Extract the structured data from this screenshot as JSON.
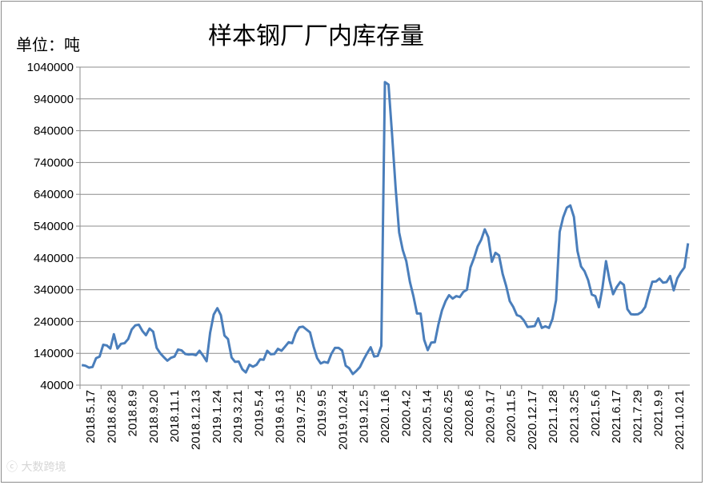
{
  "chart_data": {
    "type": "line",
    "title": "样本钢厂厂内库存量",
    "unit_label": "单位：吨",
    "ylim": [
      40000,
      1040000
    ],
    "y_ticks": [
      "1040000",
      "940000",
      "840000",
      "740000",
      "640000",
      "540000",
      "440000",
      "340000",
      "240000",
      "140000",
      "40000"
    ],
    "x_tick_labels": [
      "2018.5.17",
      "2018.6.28",
      "2018.8.9",
      "2018.9.20",
      "2018.11.1",
      "2018.12.13",
      "2019.1.24",
      "2019.3.21",
      "2019.5.4",
      "2019.6.13",
      "2019.7.25",
      "2019.9.5",
      "2019.10.24",
      "2019.12.5",
      "2020.1.16",
      "2020.4.2",
      "2020.5.14",
      "2020.6.25",
      "2020.8.6",
      "2020.9.17",
      "2020.11.5",
      "2020.12.17",
      "2021.1.28",
      "2021.3.25",
      "2021.5.6",
      "2021.6.17",
      "2021.7.29",
      "2021.9.9",
      "2021.10.21"
    ],
    "grid": true,
    "legend": "none",
    "series": [
      {
        "color": "#4a7ebb",
        "values": [
          103000,
          101000,
          95000,
          97000,
          125000,
          130000,
          167000,
          165000,
          155000,
          200000,
          155000,
          170000,
          172000,
          185000,
          215000,
          228000,
          230000,
          210000,
          197000,
          218000,
          208000,
          157000,
          140000,
          128000,
          117000,
          126000,
          130000,
          152000,
          149000,
          138000,
          136000,
          137000,
          134000,
          148000,
          133000,
          115000,
          205000,
          262000,
          282000,
          260000,
          196000,
          185000,
          127000,
          113000,
          114000,
          90000,
          80000,
          104000,
          98000,
          104000,
          121000,
          120000,
          148000,
          137000,
          138000,
          154000,
          148000,
          161000,
          175000,
          172000,
          204000,
          222000,
          224000,
          215000,
          206000,
          161000,
          125000,
          108000,
          113000,
          110000,
          139000,
          157000,
          157000,
          149000,
          101000,
          93000,
          75000,
          85000,
          97000,
          120000,
          140000,
          159000,
          130000,
          132000,
          163000,
          993000,
          985000,
          830000,
          660000,
          520000,
          465000,
          430000,
          365000,
          320000,
          265000,
          265000,
          183000,
          150000,
          174000,
          175000,
          230000,
          275000,
          304000,
          323000,
          312000,
          320000,
          317000,
          333000,
          340000,
          410000,
          440000,
          476000,
          497000,
          530000,
          505000,
          428000,
          456000,
          448000,
          390000,
          352000,
          304000,
          286000,
          260000,
          256000,
          243000,
          223000,
          224000,
          226000,
          250000,
          220000,
          225000,
          220000,
          248000,
          307000,
          522000,
          568000,
          598000,
          605000,
          569000,
          462000,
          413000,
          398000,
          370000,
          325000,
          320000,
          285000,
          345000,
          430000,
          370000,
          326000,
          348000,
          364000,
          355000,
          279000,
          263000,
          262000,
          263000,
          270000,
          286000,
          328000,
          365000,
          366000,
          375000,
          362000,
          364000,
          383000,
          338000,
          376000,
          395000,
          410000,
          486000
        ]
      }
    ]
  }
}
